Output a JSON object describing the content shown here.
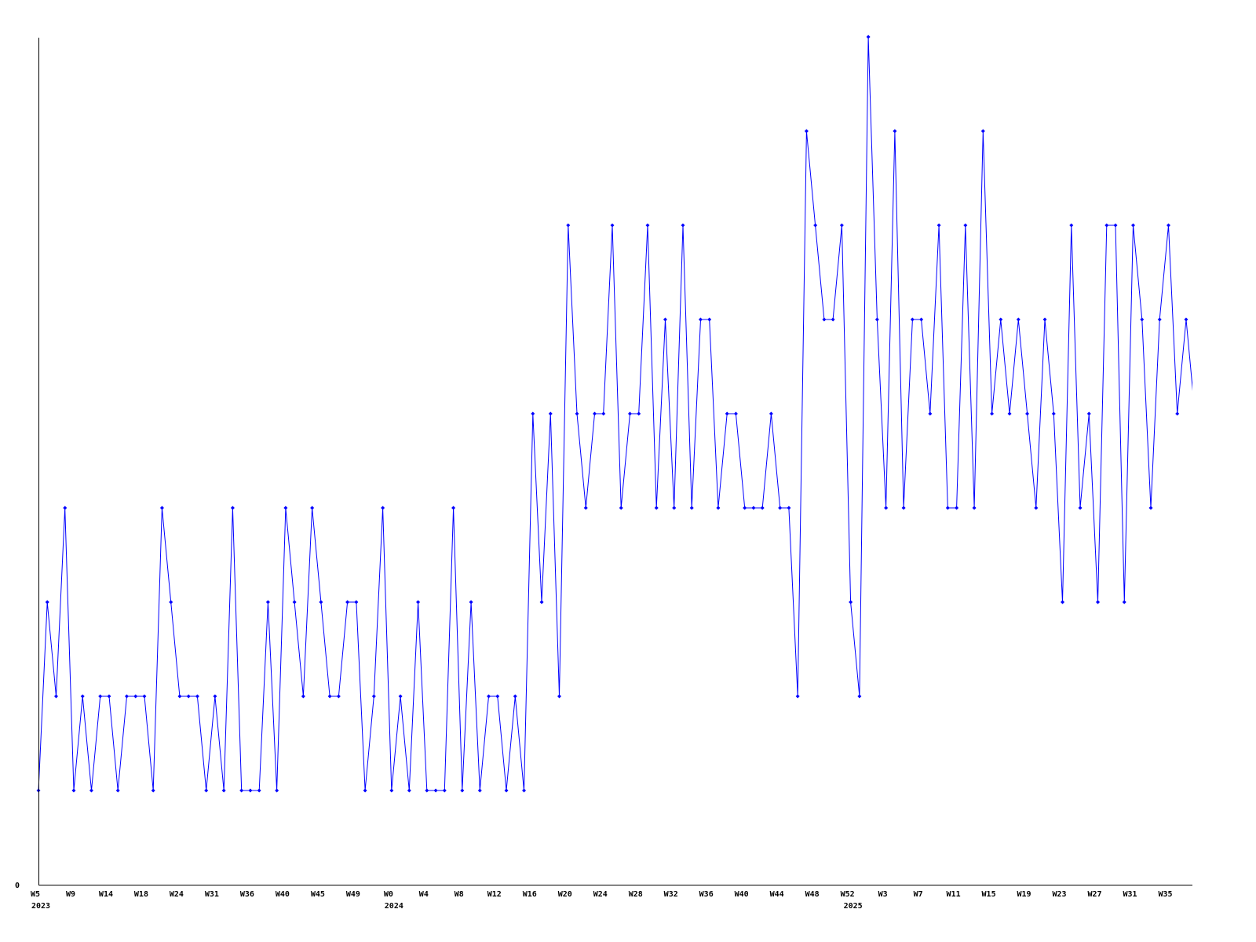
{
  "chart_data": {
    "type": "line",
    "title": "",
    "xlabel": "",
    "ylabel": "",
    "ylim": [
      0,
      9
    ],
    "grid": false,
    "legend": "none",
    "line_color": "#0000ff",
    "axis_color": "#000000",
    "y_tick_labels": [
      "0"
    ],
    "x_tick_labels": [
      "W5",
      "W9",
      "W14",
      "W18",
      "W24",
      "W31",
      "W36",
      "W40",
      "W45",
      "W49",
      "W0",
      "W4",
      "W8",
      "W12",
      "W16",
      "W20",
      "W24",
      "W28",
      "W32",
      "W36",
      "W40",
      "W44",
      "W48",
      "W52",
      "W3",
      "W7",
      "W11",
      "W15",
      "W19",
      "W23",
      "W27",
      "W31",
      "W35"
    ],
    "year_labels": [
      {
        "label": "2023",
        "at_point": 0
      },
      {
        "label": "2024",
        "at_point": 40
      },
      {
        "label": "2025",
        "at_point": 92
      }
    ],
    "values": [
      1,
      3,
      2,
      4,
      1,
      2,
      1,
      2,
      2,
      1,
      2,
      2,
      2,
      1,
      4,
      3,
      2,
      2,
      2,
      1,
      2,
      1,
      4,
      1,
      1,
      1,
      3,
      1,
      4,
      3,
      2,
      4,
      3,
      2,
      2,
      3,
      3,
      1,
      2,
      4,
      1,
      2,
      1,
      3,
      1,
      1,
      1,
      4,
      1,
      3,
      1,
      2,
      2,
      1,
      2,
      1,
      5,
      3,
      5,
      2,
      7,
      5,
      4,
      5,
      5,
      7,
      4,
      5,
      5,
      7,
      4,
      6,
      4,
      7,
      4,
      6,
      6,
      4,
      5,
      5,
      4,
      4,
      4,
      5,
      4,
      4,
      2,
      8,
      7,
      6,
      6,
      7,
      3,
      2,
      9,
      6,
      4,
      8,
      4,
      6,
      6,
      5,
      7,
      4,
      4,
      7,
      4,
      8,
      5,
      6,
      5,
      6,
      5,
      4,
      6,
      5,
      3,
      7,
      4,
      5,
      3,
      7,
      7,
      3,
      7,
      6,
      4,
      6,
      7,
      5,
      6,
      5
    ]
  }
}
